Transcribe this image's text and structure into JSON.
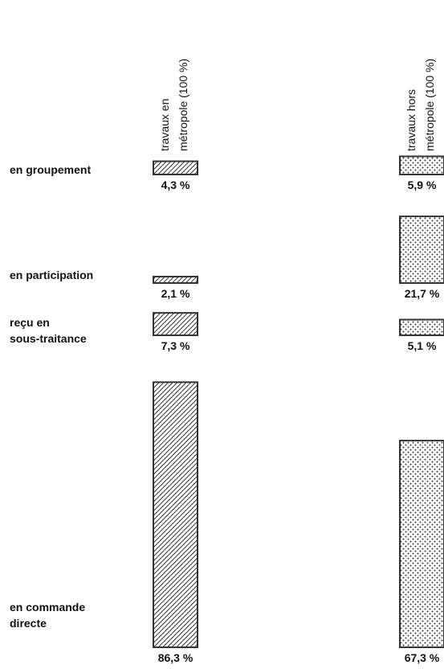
{
  "chart_data": {
    "type": "bar",
    "categories": [
      "en groupement",
      "en participation",
      "reçu en\nsous-traitance",
      "en commande\ndirecte"
    ],
    "series": [
      {
        "name": "travaux en\nmétropole (100 %)",
        "color": "#333333",
        "pattern": "hatch",
        "values": [
          4.3,
          2.1,
          7.3,
          86.3
        ],
        "value_labels": [
          "4,3 %",
          "2,1 %",
          "7,3 %",
          "86,3 %"
        ]
      },
      {
        "name": "travaux hors\nmétropole (100 %)",
        "color": "#333333",
        "pattern": "dots",
        "values": [
          5.9,
          21.7,
          5.1,
          67.3
        ],
        "value_labels": [
          "5,9 %",
          "21,7 %",
          "5,1 %",
          "67,3 %"
        ]
      }
    ]
  }
}
